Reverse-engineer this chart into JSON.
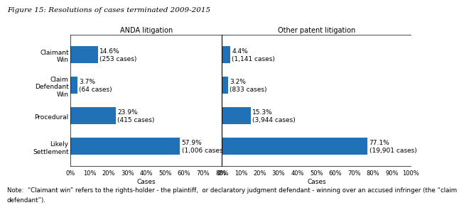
{
  "title": "Figure 15: Resolutions of cases terminated 2009-2015",
  "note": "Note:  “Claimant win” refers to the rights-holder - the plaintiff,  or declaratory judgment defendant - winning over an accused infringer (the “claim\ndefendant”).",
  "categories": [
    "Claimant\nWin",
    "Claim\nDefendant\nWin",
    "Procedural",
    "Likely\nSettlement"
  ],
  "anda_values": [
    14.6,
    3.7,
    23.9,
    57.9
  ],
  "anda_labels": [
    "14.6%\n(253 cases)",
    "3.7%\n(64 cases)",
    "23.9%\n(415 cases)",
    "57.9%\n(1,006 cases)"
  ],
  "other_values": [
    4.4,
    3.2,
    15.3,
    77.1
  ],
  "other_labels": [
    "4.4%\n(1,141 cases)",
    "3.2%\n(833 cases)",
    "15.3%\n(3,944 cases)",
    "77.1%\n(19,901 cases)"
  ],
  "anda_header": "ANDA litigation",
  "other_header": "Other patent litigation",
  "xlabel": "Cases",
  "bar_color": "#2071b5",
  "anda_xlim": [
    0,
    80
  ],
  "other_xlim": [
    0,
    100
  ],
  "anda_xticks": [
    0,
    10,
    20,
    30,
    40,
    50,
    60,
    70,
    80
  ],
  "anda_xticklabels": [
    "0%",
    "10%",
    "20%",
    "30%",
    "40%",
    "50%",
    "60%",
    "70%",
    "80%"
  ],
  "other_xticks": [
    0,
    10,
    20,
    30,
    40,
    50,
    60,
    70,
    80,
    90,
    100
  ],
  "other_xticklabels": [
    "0%",
    "10%",
    "20%",
    "30%",
    "40%",
    "50%",
    "60%",
    "70%",
    "80%",
    "90%",
    "100%"
  ],
  "background_color": "#ffffff",
  "title_fontsize": 7.5,
  "label_fontsize": 6.5,
  "header_fontsize": 7,
  "tick_fontsize": 6,
  "note_fontsize": 6.2,
  "bar_height": 0.55
}
